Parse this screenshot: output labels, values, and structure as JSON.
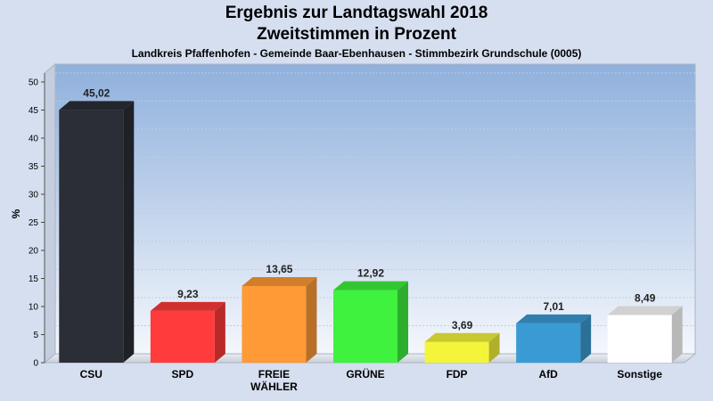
{
  "chart_data": {
    "type": "bar",
    "title": "Ergebnis zur Landtagswahl 2018",
    "subtitle": "Zweitstimmen in Prozent",
    "caption": "Landkreis Pfaffenhofen - Gemeinde Baar-Ebenhausen - Stimmbezirk Grundschule (0005)",
    "ylabel": "%",
    "ylim": [
      0,
      50
    ],
    "yticks": [
      0,
      5,
      10,
      15,
      20,
      25,
      30,
      35,
      40,
      45,
      50
    ],
    "grid": true,
    "categories": [
      {
        "label": "CSU",
        "label2": ""
      },
      {
        "label": "SPD",
        "label2": ""
      },
      {
        "label": "FREIE",
        "label2": "WÄHLER"
      },
      {
        "label": "GRÜNE",
        "label2": ""
      },
      {
        "label": "FDP",
        "label2": ""
      },
      {
        "label": "AfD",
        "label2": ""
      },
      {
        "label": "Sonstige",
        "label2": ""
      }
    ],
    "values": [
      45.02,
      9.23,
      13.65,
      12.92,
      3.69,
      7.01,
      8.49
    ],
    "value_labels": [
      "45,02",
      "9,23",
      "13,65",
      "12,92",
      "3,69",
      "7,01",
      "8,49"
    ],
    "colors": [
      "#2b2e36",
      "#ff3b3b",
      "#ff9a36",
      "#3ef23e",
      "#f4f43a",
      "#3a9bd4",
      "#ffffff"
    ]
  }
}
